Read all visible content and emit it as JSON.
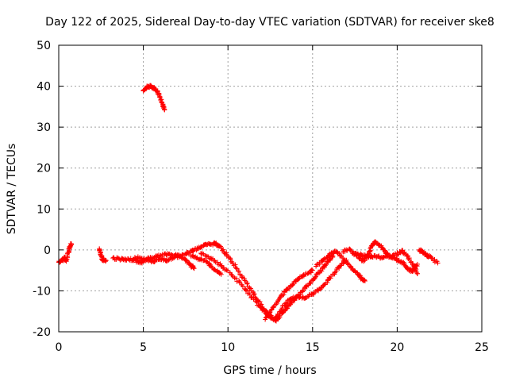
{
  "chart_data": {
    "type": "scatter",
    "title": "Day 122 of 2025, Sidereal Day-to-day VTEC variation (SDTVAR) for receiver ske8",
    "xlabel": "GPS time / hours",
    "ylabel": "SDTVAR / TECUs",
    "xlim": [
      0,
      25
    ],
    "ylim": [
      -20,
      50
    ],
    "xticks": [
      0,
      5,
      10,
      15,
      20,
      25
    ],
    "yticks": [
      -20,
      -10,
      0,
      10,
      20,
      30,
      40,
      50
    ],
    "grid": true,
    "marker": "plus",
    "color": "#ff0000",
    "tracks": [
      {
        "name": "arc-start",
        "points": [
          [
            0.0,
            -3.0
          ],
          [
            0.2,
            -2.6
          ],
          [
            0.35,
            -1.8
          ],
          [
            0.45,
            -2.8
          ],
          [
            0.55,
            -0.6
          ],
          [
            0.65,
            0.6
          ],
          [
            0.75,
            1.5
          ]
        ]
      },
      {
        "name": "arc-small",
        "points": [
          [
            2.4,
            0.3
          ],
          [
            2.5,
            -1.4
          ],
          [
            2.6,
            -2.4
          ],
          [
            2.8,
            -2.6
          ]
        ]
      },
      {
        "name": "arc-high",
        "points": [
          [
            5.0,
            39.0
          ],
          [
            5.2,
            39.8
          ],
          [
            5.4,
            40.0
          ],
          [
            5.6,
            39.6
          ],
          [
            5.8,
            38.8
          ],
          [
            6.0,
            37.2
          ],
          [
            6.15,
            35.5
          ],
          [
            6.25,
            34.2
          ]
        ]
      },
      {
        "name": "arc-base-1",
        "points": [
          [
            3.2,
            -2.0
          ],
          [
            3.6,
            -2.2
          ],
          [
            4.0,
            -2.5
          ],
          [
            4.4,
            -2.3
          ],
          [
            4.8,
            -3.2
          ],
          [
            5.2,
            -2.4
          ],
          [
            5.6,
            -2.9
          ],
          [
            6.0,
            -2.2
          ],
          [
            6.4,
            -2.6
          ],
          [
            6.8,
            -1.8
          ],
          [
            7.2,
            -1.5
          ],
          [
            7.6,
            -0.8
          ],
          [
            8.0,
            0.0
          ],
          [
            8.4,
            0.8
          ],
          [
            8.8,
            1.3
          ],
          [
            9.2,
            1.5
          ],
          [
            9.5,
            1.0
          ]
        ]
      },
      {
        "name": "arc-base-2",
        "points": [
          [
            4.5,
            -1.8
          ],
          [
            5.0,
            -2.3
          ],
          [
            5.5,
            -2.0
          ],
          [
            6.0,
            -1.4
          ],
          [
            6.5,
            -1.0
          ],
          [
            7.0,
            -1.2
          ],
          [
            7.5,
            -2.5
          ],
          [
            7.8,
            -3.8
          ],
          [
            8.0,
            -4.5
          ]
        ]
      },
      {
        "name": "arc-dip-a",
        "points": [
          [
            9.2,
            1.8
          ],
          [
            9.6,
            0.5
          ],
          [
            10.0,
            -1.5
          ],
          [
            10.5,
            -4.5
          ],
          [
            11.0,
            -7.5
          ],
          [
            11.5,
            -10.5
          ],
          [
            11.9,
            -13.2
          ],
          [
            12.2,
            -15.0
          ],
          [
            12.5,
            -16.2
          ],
          [
            12.8,
            -17.2
          ],
          [
            13.0,
            -16.5
          ],
          [
            13.3,
            -15.0
          ],
          [
            13.6,
            -13.5
          ],
          [
            14.0,
            -11.8
          ],
          [
            14.4,
            -10.2
          ],
          [
            14.8,
            -8.2
          ],
          [
            15.2,
            -6.5
          ],
          [
            15.6,
            -4.5
          ],
          [
            15.9,
            -2.8
          ],
          [
            16.2,
            -1.5
          ]
        ]
      },
      {
        "name": "arc-dip-b",
        "points": [
          [
            8.4,
            -0.8
          ],
          [
            9.0,
            -2.0
          ],
          [
            9.6,
            -3.8
          ],
          [
            10.2,
            -6.0
          ],
          [
            10.8,
            -8.5
          ],
          [
            11.3,
            -11.0
          ],
          [
            11.8,
            -13.5
          ],
          [
            12.3,
            -15.8
          ],
          [
            12.6,
            -16.5
          ]
        ]
      },
      {
        "name": "arc-dip-c",
        "points": [
          [
            7.8,
            -1.5
          ],
          [
            8.3,
            -2.2
          ],
          [
            8.8,
            -3.0
          ],
          [
            9.2,
            -4.8
          ],
          [
            9.6,
            -6.0
          ]
        ]
      },
      {
        "name": "arc-rise-1",
        "points": [
          [
            12.2,
            -17.0
          ],
          [
            12.6,
            -14.5
          ],
          [
            13.0,
            -12.2
          ],
          [
            13.4,
            -10.0
          ],
          [
            13.8,
            -8.5
          ],
          [
            14.2,
            -7.0
          ],
          [
            14.6,
            -6.0
          ],
          [
            15.0,
            -5.0
          ]
        ]
      },
      {
        "name": "arc-rise-2",
        "points": [
          [
            12.8,
            -16.5
          ],
          [
            13.2,
            -14.2
          ],
          [
            13.6,
            -12.2
          ],
          [
            14.0,
            -11.5
          ],
          [
            14.5,
            -11.8
          ],
          [
            15.0,
            -10.8
          ],
          [
            15.4,
            -9.5
          ],
          [
            15.8,
            -8.0
          ],
          [
            16.2,
            -6.0
          ],
          [
            16.6,
            -4.0
          ],
          [
            17.0,
            -2.5
          ]
        ]
      },
      {
        "name": "arc-rise-3",
        "points": [
          [
            15.2,
            -4.0
          ],
          [
            15.6,
            -2.5
          ],
          [
            16.0,
            -1.2
          ],
          [
            16.4,
            -0.4
          ],
          [
            16.8,
            -2.0
          ],
          [
            17.2,
            -4.0
          ],
          [
            17.6,
            -5.5
          ],
          [
            17.9,
            -7.0
          ],
          [
            18.1,
            -7.6
          ]
        ]
      },
      {
        "name": "arc-right",
        "points": [
          [
            16.8,
            -0.5
          ],
          [
            17.2,
            0.2
          ],
          [
            17.6,
            -1.5
          ],
          [
            18.0,
            -2.8
          ],
          [
            18.3,
            -1.0
          ],
          [
            18.5,
            1.0
          ],
          [
            18.7,
            2.0
          ],
          [
            19.0,
            1.0
          ],
          [
            19.3,
            -0.5
          ],
          [
            19.6,
            -1.8
          ],
          [
            20.0,
            -1.0
          ],
          [
            20.3,
            -0.2
          ],
          [
            20.6,
            -1.5
          ],
          [
            21.0,
            -4.0
          ],
          [
            21.2,
            -5.8
          ]
        ]
      },
      {
        "name": "arc-right-2",
        "points": [
          [
            17.5,
            -0.8
          ],
          [
            17.9,
            -1.2
          ],
          [
            18.3,
            -1.8
          ],
          [
            18.7,
            -1.4
          ],
          [
            19.1,
            -2.0
          ],
          [
            19.5,
            -1.2
          ],
          [
            19.9,
            -2.2
          ],
          [
            20.3,
            -3.0
          ],
          [
            20.6,
            -4.6
          ],
          [
            20.9,
            -5.2
          ],
          [
            21.2,
            -3.5
          ]
        ]
      },
      {
        "name": "arc-end",
        "points": [
          [
            21.3,
            0.0
          ],
          [
            21.5,
            -0.5
          ],
          [
            21.7,
            -1.2
          ],
          [
            21.9,
            -1.6
          ],
          [
            22.4,
            -3.2
          ]
        ]
      }
    ]
  }
}
